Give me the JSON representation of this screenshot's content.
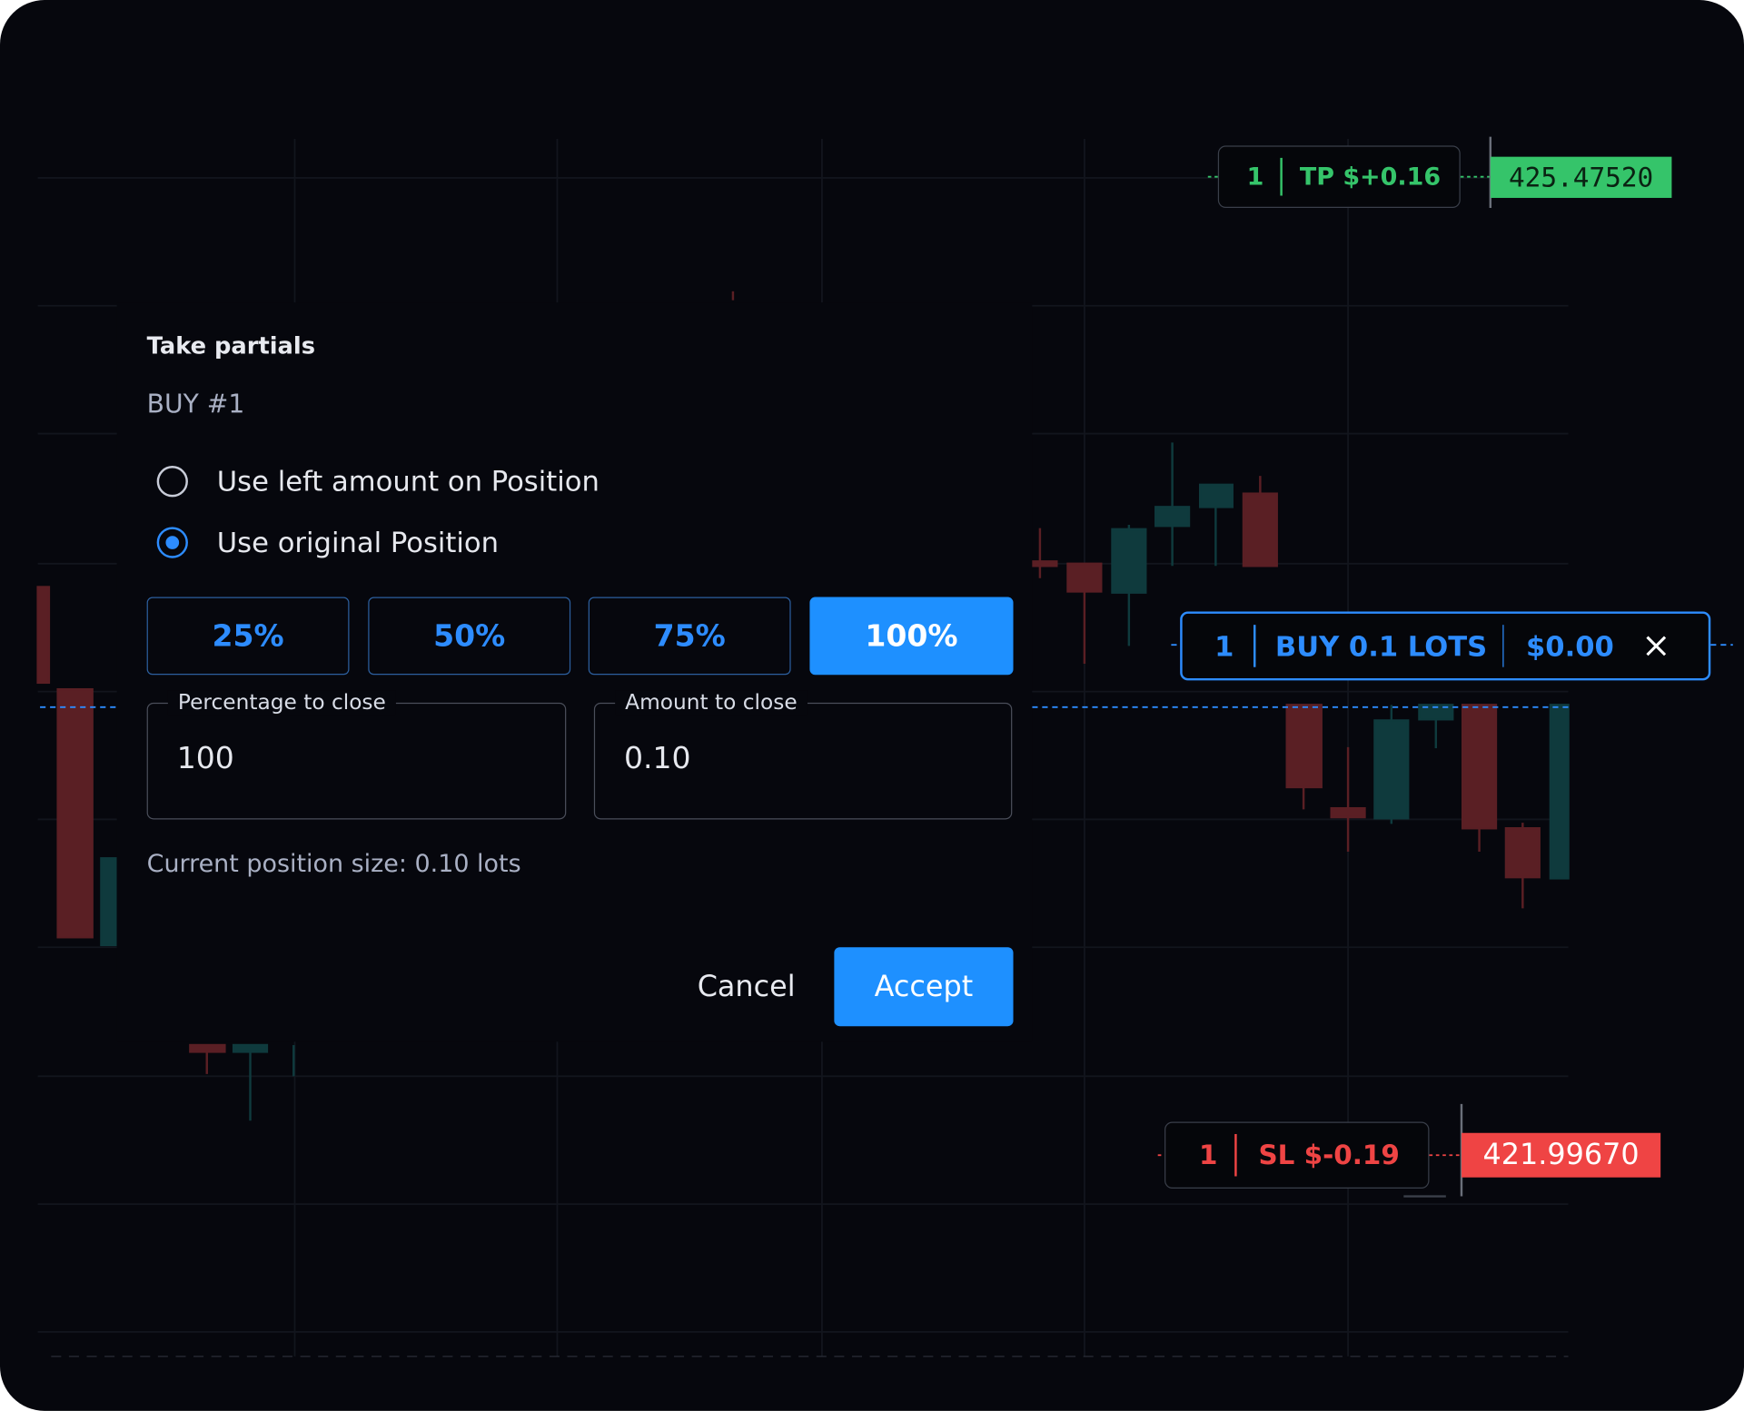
{
  "tp_order": {
    "count": "1",
    "label": "TP $+0.16",
    "price": "425.47520"
  },
  "position": {
    "count": "1",
    "label": "BUY 0.1 LOTS",
    "pnl": "$0.00"
  },
  "sl_order": {
    "count": "1",
    "label": "SL $-0.19",
    "price": "421.99670"
  },
  "dialog": {
    "title": "Take partials",
    "subtitle": "BUY #1",
    "options": [
      "Use left amount on Position",
      "Use original Position"
    ],
    "selected_option": 1,
    "presets": [
      "25%",
      "50%",
      "75%",
      "100%"
    ],
    "selected_preset": 3,
    "fields": [
      {
        "label": "Percentage to close",
        "value": "100"
      },
      {
        "label": "Amount to close",
        "value": "0.10"
      }
    ],
    "note": "Current position size: 0.10 lots",
    "cancel": "Cancel",
    "accept": "Accept"
  }
}
